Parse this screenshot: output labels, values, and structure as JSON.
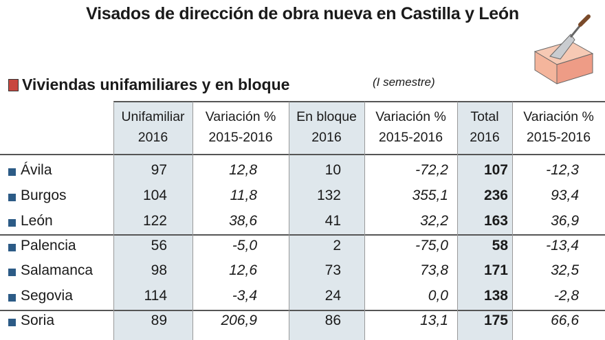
{
  "title": "Visados de dirección de obra nueva en Castilla y León",
  "subtitle": "Viviendas unifamiliares y en bloque",
  "note": "(I semestre)",
  "table": {
    "columns": [
      [
        "Unifamiliar",
        "2016"
      ],
      [
        "Variación %",
        "2015-2016"
      ],
      [
        "En bloque",
        "2016"
      ],
      [
        "Variación %",
        "2015-2016"
      ],
      [
        "Total",
        "2016"
      ],
      [
        "Variación %",
        "2015-2016"
      ]
    ],
    "rows": [
      [
        "Ávila",
        "97",
        "12,8",
        "10",
        "-72,2",
        "107",
        "-12,3"
      ],
      [
        "Burgos",
        "104",
        "11,8",
        "132",
        "355,1",
        "236",
        "93,4"
      ],
      [
        "León",
        "122",
        "38,6",
        "41",
        "32,2",
        "163",
        "36,9"
      ],
      [
        "Palencia",
        "56",
        "-5,0",
        "2",
        "-75,0",
        "58",
        "-13,4"
      ],
      [
        "Salamanca",
        "98",
        "12,6",
        "73",
        "73,8",
        "171",
        "32,5"
      ],
      [
        "Segovia",
        "114",
        "-3,4",
        "24",
        "0,0",
        "138",
        "-2,8"
      ],
      [
        "Soria",
        "89",
        "206,9",
        "86",
        "13,1",
        "175",
        "66,6"
      ]
    ]
  }
}
